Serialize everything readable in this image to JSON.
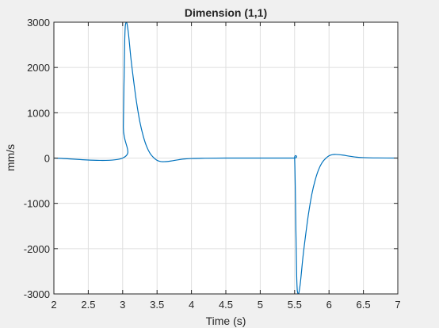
{
  "window": {
    "background_color": "#f0f0f0"
  },
  "chart_data": {
    "type": "line",
    "title": "Dimension (1,1)",
    "xlabel": "Time (s)",
    "ylabel": "mm/s",
    "xlim": [
      2,
      7
    ],
    "ylim": [
      -3000,
      3000
    ],
    "xticks": [
      2,
      2.5,
      3,
      3.5,
      4,
      4.5,
      5,
      5.5,
      6,
      6.5,
      7
    ],
    "xtick_labels": [
      "2",
      "2.5",
      "3",
      "3.5",
      "4",
      "4.5",
      "5",
      "5.5",
      "6",
      "6.5",
      "7"
    ],
    "yticks": [
      -3000,
      -2000,
      -1000,
      0,
      1000,
      2000,
      3000
    ],
    "ytick_labels": [
      "-3000",
      "-2000",
      "-1000",
      "0",
      "1000",
      "2000",
      "3000"
    ],
    "grid": true,
    "line_color": "#0072bd",
    "series": [
      {
        "x": [
          2,
          3.0,
          3.01,
          3.03,
          3.05,
          3.08,
          3.12,
          3.16,
          3.2,
          3.25,
          3.3,
          3.35,
          3.4,
          3.45,
          3.5,
          3.55,
          3.6,
          3.7,
          3.8,
          3.9,
          4.0,
          4.2,
          4.5,
          5.0,
          5.49,
          5.5,
          5.51,
          5.53,
          5.55,
          5.58,
          5.62,
          5.66,
          5.7,
          5.75,
          5.8,
          5.85,
          5.9,
          5.95,
          6.0,
          6.05,
          6.1,
          6.2,
          6.3,
          6.4,
          6.5,
          6.7,
          7.0
        ],
        "y": [
          0,
          0,
          700,
          2600,
          3000,
          2800,
          2200,
          1700,
          1250,
          800,
          480,
          250,
          100,
          10,
          -50,
          -75,
          -80,
          -65,
          -40,
          -20,
          -10,
          -3,
          0,
          0,
          0,
          0,
          -700,
          -2600,
          -3000,
          -2800,
          -2200,
          -1700,
          -1250,
          -800,
          -480,
          -250,
          -100,
          -10,
          50,
          75,
          80,
          65,
          40,
          20,
          10,
          3,
          0
        ]
      }
    ]
  }
}
